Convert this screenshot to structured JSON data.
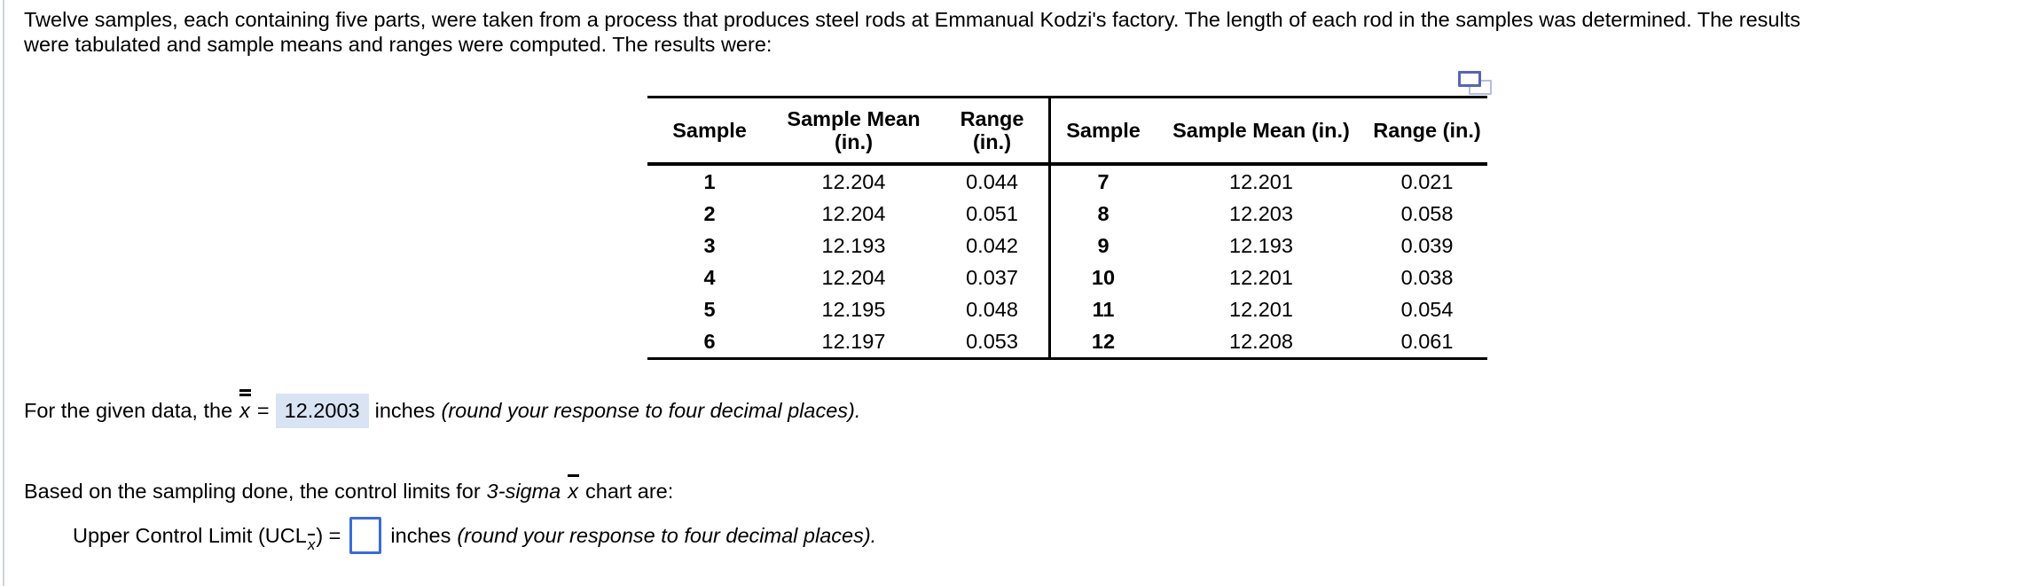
{
  "colors": {
    "accent_blue": "#3b6bd8",
    "answer_highlight": "#d8e3f3",
    "icon_blue": "#5666b3",
    "icon_blue_light": "#b6bedf",
    "left_rule_gray": "#cdd4df"
  },
  "intro": {
    "line1": "Twelve samples, each containing five parts, were taken from a process that produces steel rods at Emmanual Kodzi's factory. The length of each rod in the samples was determined. The results",
    "line2": "were tabulated and sample means and ranges were computed. The results were:"
  },
  "table": {
    "left_headers": {
      "sample": "Sample",
      "mean_line1": "Sample Mean",
      "mean_line2": "(in.)",
      "range_line1": "Range",
      "range_line2": "(in.)"
    },
    "right_headers": {
      "sample": "Sample",
      "mean": "Sample Mean (in.)",
      "range": "Range (in.)"
    },
    "rows": [
      {
        "ls": "1",
        "lm": "12.204",
        "lr": "0.044",
        "rs": "7",
        "rm": "12.201",
        "rr": "0.021"
      },
      {
        "ls": "2",
        "lm": "12.204",
        "lr": "0.051",
        "rs": "8",
        "rm": "12.203",
        "rr": "0.058"
      },
      {
        "ls": "3",
        "lm": "12.193",
        "lr": "0.042",
        "rs": "9",
        "rm": "12.193",
        "rr": "0.039"
      },
      {
        "ls": "4",
        "lm": "12.204",
        "lr": "0.037",
        "rs": "10",
        "rm": "12.201",
        "rr": "0.038"
      },
      {
        "ls": "5",
        "lm": "12.195",
        "lr": "0.048",
        "rs": "11",
        "rm": "12.201",
        "rr": "0.054"
      },
      {
        "ls": "6",
        "lm": "12.197",
        "lr": "0.053",
        "rs": "12",
        "rm": "12.208",
        "rr": "0.061"
      }
    ]
  },
  "q1": {
    "prefix": "For the given data, the",
    "symbol": "x",
    "equals": "=",
    "answer": "12.2003",
    "unit": "inches",
    "note": "(round your response to four decimal places)."
  },
  "q2": {
    "before": "Based on the sampling done, the control limits for",
    "italic_term": "3-sigma",
    "symbol": "x",
    "after": "chart are:"
  },
  "q3": {
    "label_open": "Upper Control Limit (UCL",
    "subscript": "x",
    "label_close": ") =",
    "input_value": "",
    "unit": "inches",
    "note": "(round your response to four decimal places)."
  }
}
